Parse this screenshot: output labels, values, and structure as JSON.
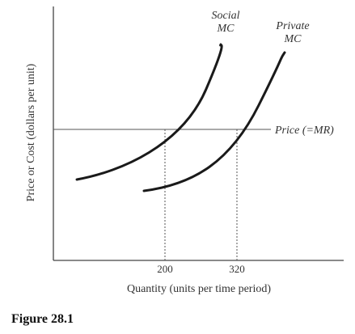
{
  "figure": {
    "caption": "Figure 28.1",
    "y_axis_label": "Price or Cost (dollars per unit)",
    "x_axis_label": "Quantity (units per time period)",
    "price_line_label": "Price (=MR)",
    "curves": {
      "social": {
        "line1": "Social",
        "line2": "MC"
      },
      "private": {
        "line1": "Private",
        "line2": "MC"
      }
    },
    "x_ticks": [
      {
        "label": "200",
        "value": 200
      },
      {
        "label": "320",
        "value": 320
      }
    ]
  }
}
